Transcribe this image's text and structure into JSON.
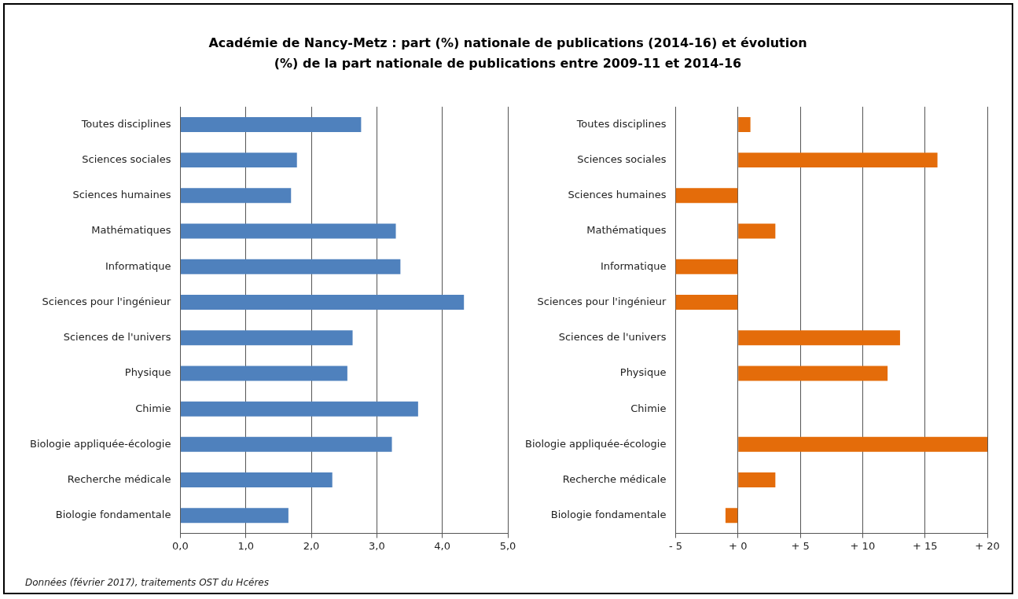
{
  "chart_data": [
    {
      "type": "bar",
      "orientation": "horizontal",
      "title": "Académie de Nancy-Metz : part (%) nationale de publications (2014-16) et évolution (%) de la part nationale  de publications entre 2009-11 et 2014-16",
      "categories": [
        "Toutes disciplines",
        "Sciences sociales",
        "Sciences humaines",
        "Mathématiques",
        "Informatique",
        "Sciences pour l'ingénieur",
        "Sciences de l'univers",
        "Physique",
        "Chimie",
        "Biologie appliquée-écologie",
        "Recherche médicale",
        "Biologie fondamentale"
      ],
      "values": [
        2.76,
        1.78,
        1.69,
        3.29,
        3.36,
        4.33,
        2.63,
        2.55,
        3.63,
        3.23,
        2.32,
        1.65
      ],
      "color": "#4f81bd",
      "xlim": [
        0,
        5
      ],
      "xticks": [
        {
          "value": 0,
          "label": "0,0"
        },
        {
          "value": 1,
          "label": "1,0"
        },
        {
          "value": 2,
          "label": "2,0"
        },
        {
          "value": 3,
          "label": "3,0"
        },
        {
          "value": 4,
          "label": "4,0"
        },
        {
          "value": 5,
          "label": "5,0"
        }
      ],
      "grid": "x",
      "annotations": [
        "Données (février 2017), traitements OST du Hcéres"
      ]
    },
    {
      "type": "bar",
      "orientation": "horizontal",
      "categories": [
        "Toutes disciplines",
        "Sciences sociales",
        "Sciences humaines",
        "Mathématiques",
        "Informatique",
        "Sciences pour l'ingénieur",
        "Sciences de l'univers",
        "Physique",
        "Chimie",
        "Biologie appliquée-écologie",
        "Recherche médicale",
        "Biologie fondamentale"
      ],
      "values": [
        1,
        16,
        -5,
        3,
        -5,
        -5,
        13,
        12,
        0,
        20,
        3,
        -1
      ],
      "color": "#e46c0a",
      "xlim": [
        -5,
        20
      ],
      "xticks": [
        {
          "value": -5,
          "label": "- 5"
        },
        {
          "value": 0,
          "label": "+ 0"
        },
        {
          "value": 5,
          "label": "+ 5"
        },
        {
          "value": 10,
          "label": "+ 10"
        },
        {
          "value": 15,
          "label": "+ 15"
        },
        {
          "value": 20,
          "label": "+ 20"
        }
      ],
      "grid": "x"
    }
  ]
}
